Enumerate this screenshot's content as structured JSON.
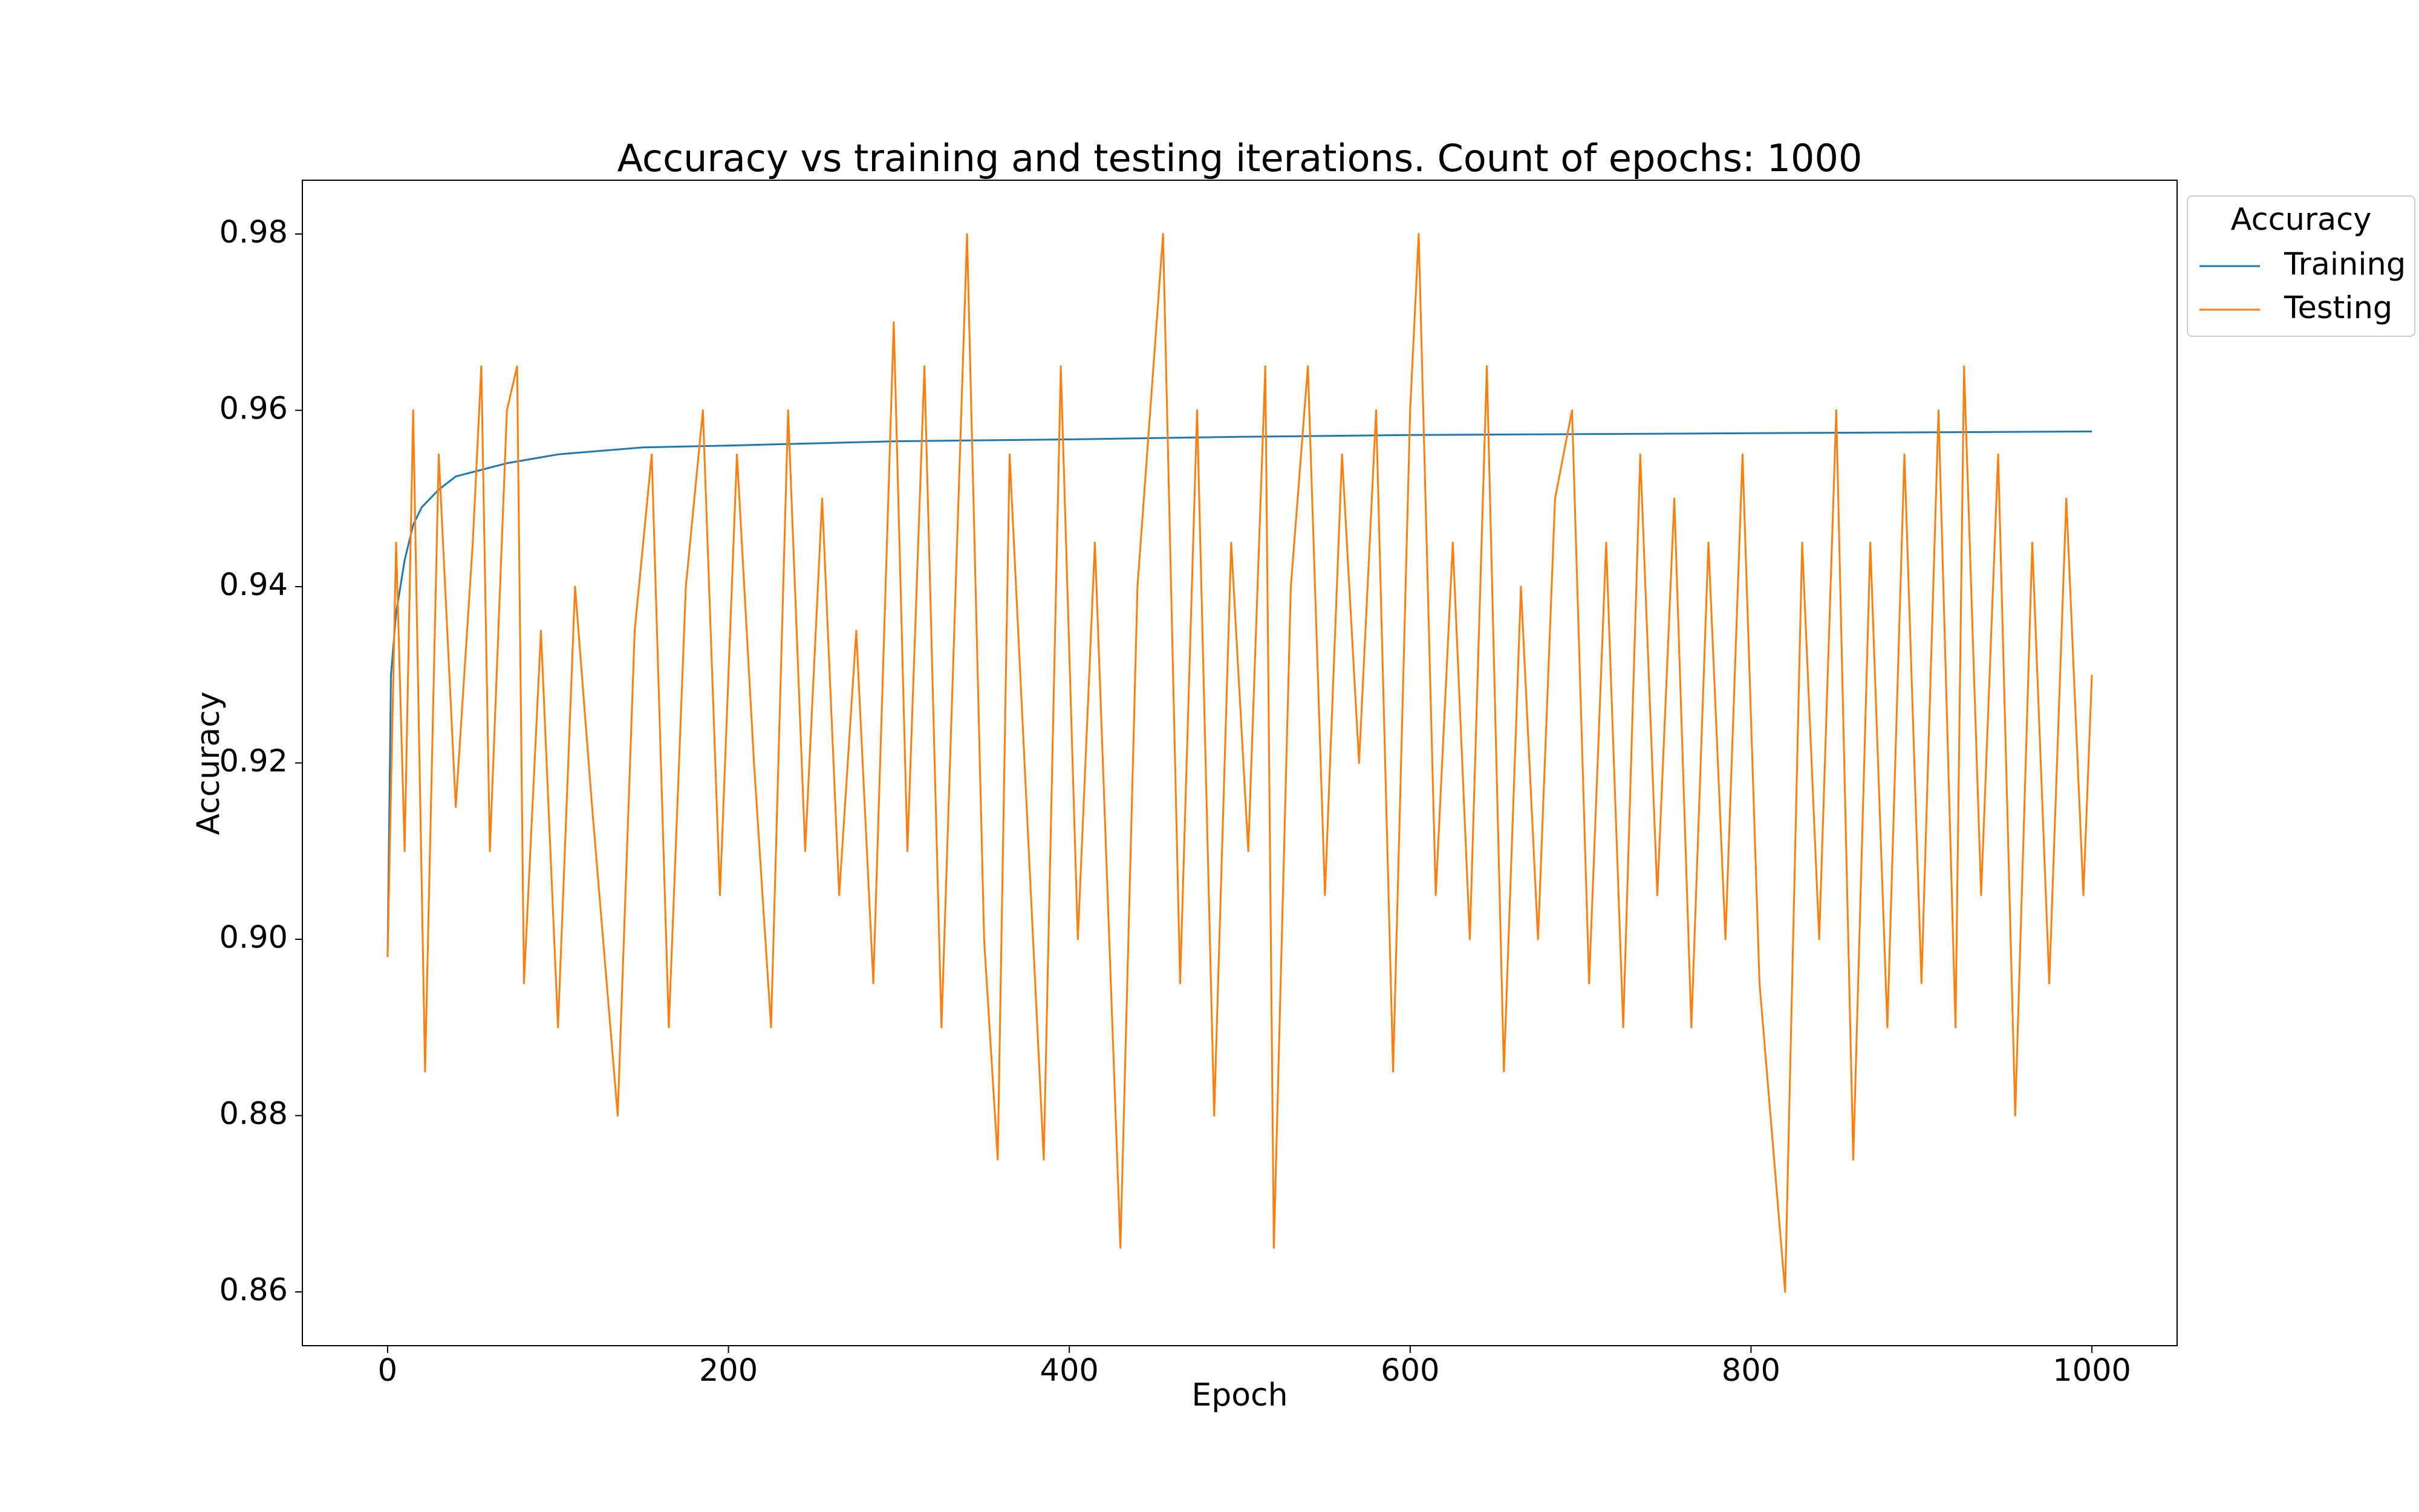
{
  "chart_data": {
    "type": "line",
    "title": "Accuracy vs training and testing iterations. Count of epochs: 1000",
    "xlabel": "Epoch",
    "ylabel": "Accuracy",
    "legend_title": "Accuracy",
    "legend_loc": "outside-upper-right",
    "xlim": [
      -50,
      1050
    ],
    "ylim": [
      0.8539,
      0.9861
    ],
    "xticks": [
      0,
      200,
      400,
      600,
      800,
      1000
    ],
    "yticks": [
      0.86,
      0.88,
      {
        "value": 0.9,
        "label": "0.90"
      },
      0.92,
      0.94,
      0.96,
      0.98
    ],
    "series": [
      {
        "name": "Training",
        "color": "#1f77b4",
        "x": [
          0,
          2,
          5,
          10,
          15,
          20,
          30,
          40,
          50,
          70,
          100,
          150,
          200,
          300,
          400,
          500,
          600,
          700,
          800,
          900,
          1000
        ],
        "values": [
          0.898,
          0.93,
          0.937,
          0.943,
          0.947,
          0.949,
          0.951,
          0.9525,
          0.953,
          0.954,
          0.955,
          0.9558,
          0.956,
          0.9565,
          0.9567,
          0.957,
          0.9572,
          0.9573,
          0.9574,
          0.9575,
          0.9576
        ]
      },
      {
        "name": "Testing",
        "color": "#ff7f0e",
        "x": [
          0,
          5,
          10,
          15,
          22,
          30,
          40,
          50,
          55,
          60,
          70,
          76,
          80,
          90,
          100,
          110,
          120,
          135,
          145,
          155,
          165,
          175,
          185,
          195,
          205,
          215,
          225,
          235,
          245,
          255,
          265,
          275,
          285,
          297,
          305,
          315,
          325,
          340,
          350,
          358,
          365,
          375,
          385,
          395,
          405,
          415,
          430,
          440,
          455,
          465,
          475,
          485,
          495,
          505,
          515,
          520,
          530,
          540,
          550,
          560,
          570,
          580,
          590,
          600,
          605,
          615,
          625,
          635,
          645,
          655,
          665,
          675,
          685,
          695,
          705,
          715,
          725,
          735,
          745,
          755,
          765,
          775,
          785,
          795,
          805,
          820,
          830,
          840,
          850,
          860,
          870,
          880,
          890,
          900,
          910,
          920,
          925,
          935,
          945,
          955,
          965,
          975,
          985,
          995,
          1000
        ],
        "values": [
          0.898,
          0.945,
          0.91,
          0.96,
          0.885,
          0.955,
          0.915,
          0.945,
          0.965,
          0.91,
          0.96,
          0.965,
          0.895,
          0.935,
          0.89,
          0.94,
          0.915,
          0.88,
          0.935,
          0.955,
          0.89,
          0.94,
          0.96,
          0.905,
          0.955,
          0.92,
          0.89,
          0.96,
          0.91,
          0.95,
          0.905,
          0.935,
          0.895,
          0.97,
          0.91,
          0.965,
          0.89,
          0.98,
          0.9,
          0.875,
          0.955,
          0.915,
          0.875,
          0.965,
          0.9,
          0.945,
          0.865,
          0.94,
          0.98,
          0.895,
          0.96,
          0.88,
          0.945,
          0.91,
          0.965,
          0.865,
          0.94,
          0.965,
          0.905,
          0.955,
          0.92,
          0.96,
          0.885,
          0.96,
          0.98,
          0.905,
          0.945,
          0.9,
          0.965,
          0.885,
          0.94,
          0.9,
          0.95,
          0.96,
          0.895,
          0.945,
          0.89,
          0.955,
          0.905,
          0.95,
          0.89,
          0.945,
          0.9,
          0.955,
          0.895,
          0.86,
          0.945,
          0.9,
          0.96,
          0.875,
          0.945,
          0.89,
          0.955,
          0.895,
          0.96,
          0.89,
          0.965,
          0.905,
          0.955,
          0.88,
          0.945,
          0.895,
          0.95,
          0.905,
          0.93
        ]
      }
    ]
  }
}
